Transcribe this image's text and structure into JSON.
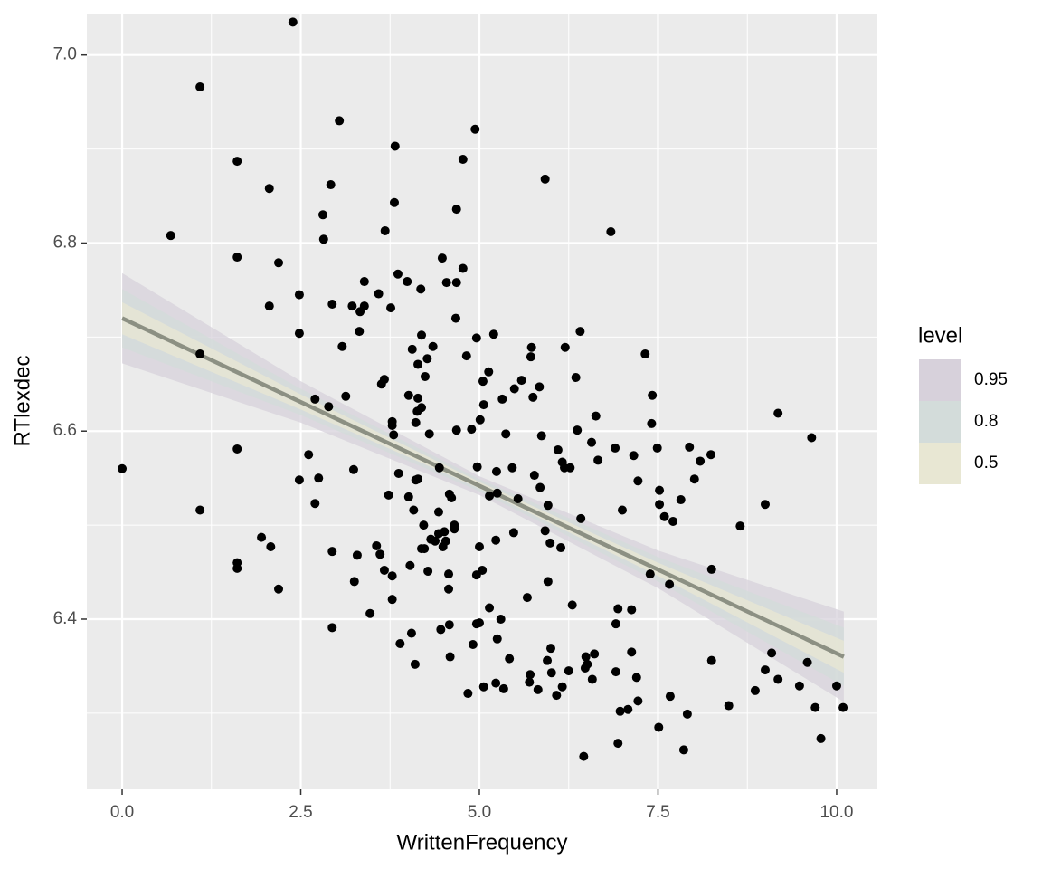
{
  "chart_data": {
    "type": "scatter",
    "x_label": "WrittenFrequency",
    "y_label": "RTlexdec",
    "xlim": [
      -0.494,
      10.57
    ],
    "ylim": [
      6.219,
      7.044
    ],
    "xticks": [
      {
        "value": 0,
        "label": "0.0"
      },
      2.5,
      {
        "value": 5,
        "label": "5.0"
      },
      7.5,
      {
        "value": 10,
        "label": "10.0"
      }
    ],
    "yticks": [
      6.4,
      6.6,
      6.8,
      {
        "value": 7,
        "label": "7.0"
      }
    ],
    "x_minor_ticks": [
      1.25,
      3.75,
      6.25,
      8.75
    ],
    "y_minor_ticks": [
      6.3,
      6.5,
      6.7,
      6.9
    ],
    "grid": true,
    "point_color": "#000000",
    "legend_title": "level",
    "legend_position": "right",
    "ribbons": [
      {
        "name": "0.95",
        "color": "#d7d1db",
        "x": [
          0,
          2.5,
          5,
          7.5,
          10.1
        ],
        "lower": [
          6.672,
          6.609,
          6.532,
          6.433,
          6.312
        ],
        "upper": [
          6.768,
          6.653,
          6.552,
          6.473,
          6.408
        ]
      },
      {
        "name": "0.8",
        "color": "#d3dcda",
        "x": [
          0,
          2.5,
          5,
          7.5,
          10.1
        ],
        "lower": [
          6.689,
          6.617,
          6.536,
          6.44,
          6.329
        ],
        "upper": [
          6.751,
          6.645,
          6.549,
          6.466,
          6.391
        ]
      },
      {
        "name": "0.5",
        "color": "#e8e7d3",
        "x": [
          0,
          2.5,
          5,
          7.5,
          10.1
        ],
        "lower": [
          6.703,
          6.623,
          6.539,
          6.446,
          6.343
        ],
        "upper": [
          6.737,
          6.639,
          6.546,
          6.46,
          6.377
        ]
      }
    ],
    "fit_line": {
      "color": "#8c9083",
      "x": [
        0,
        10.1
      ],
      "y": [
        6.72,
        6.36
      ]
    },
    "x": [
      0,
      0.68,
      1.09,
      1.09,
      1.09,
      1.61,
      1.61,
      1.61,
      1.61,
      1.61,
      1.95,
      2.06,
      2.06,
      2.08,
      2.19,
      2.19,
      2.39,
      2.48,
      2.48,
      2.48,
      2.61,
      2.7,
      2.7,
      2.75,
      2.81,
      2.82,
      2.89,
      2.92,
      2.94,
      2.94,
      2.94,
      3.04,
      3.08,
      3.13,
      3.22,
      3.24,
      3.25,
      3.29,
      3.32,
      3.33,
      3.39,
      3.39,
      3.47,
      3.56,
      3.59,
      3.61,
      3.63,
      3.67,
      3.67,
      3.68,
      3.73,
      3.76,
      3.78,
      3.78,
      3.78,
      3.78,
      3.8,
      3.81,
      3.82,
      3.86,
      3.87,
      3.89,
      3.99,
      4.01,
      4.01,
      4.03,
      4.05,
      4.06,
      4.08,
      4.1,
      4.11,
      4.11,
      4.13,
      4.14,
      4.14,
      4.14,
      4.18,
      4.19,
      4.19,
      4.19,
      4.22,
      4.23,
      4.24,
      4.27,
      4.28,
      4.3,
      4.32,
      4.35,
      4.38,
      4.43,
      4.43,
      4.44,
      4.46,
      4.48,
      4.49,
      4.51,
      4.53,
      4.54,
      4.57,
      4.57,
      4.58,
      4.58,
      4.59,
      4.61,
      4.68,
      4.65,
      4.65,
      4.67,
      4.68,
      4.68,
      4.77,
      4.77,
      4.82,
      4.84,
      4.89,
      4.91,
      4.94,
      4.96,
      4.96,
      4.96,
      4.97,
      5.0,
      5.0,
      5.01,
      5.04,
      5.05,
      5.06,
      5.06,
      5.13,
      5.14,
      5.14,
      5.2,
      5.23,
      5.23,
      5.24,
      5.25,
      5.25,
      5.3,
      5.32,
      5.34,
      5.37,
      5.42,
      5.46,
      5.48,
      5.49,
      5.54,
      5.59,
      5.67,
      5.7,
      5.71,
      5.72,
      5.73,
      5.75,
      5.77,
      5.82,
      5.84,
      5.85,
      5.87,
      5.92,
      5.92,
      5.95,
      5.96,
      5.96,
      5.99,
      6.0,
      6.01,
      6.08,
      6.1,
      6.14,
      6.16,
      6.16,
      6.19,
      6.2,
      6.27,
      6.25,
      6.3,
      6.35,
      6.37,
      6.41,
      6.42,
      6.46,
      6.48,
      6.49,
      6.51,
      6.57,
      6.58,
      6.61,
      6.63,
      6.66,
      6.84,
      6.9,
      6.91,
      6.91,
      6.94,
      6.94,
      6.97,
      7.0,
      7.08,
      7.13,
      7.13,
      7.16,
      7.2,
      7.22,
      7.22,
      7.32,
      7.39,
      7.41,
      7.42,
      7.49,
      7.51,
      7.52,
      7.52,
      7.59,
      7.66,
      7.67,
      7.71,
      7.82,
      7.86,
      7.91,
      7.94,
      8.01,
      8.09,
      8.25,
      8.25,
      8.24,
      8.49,
      8.65,
      8.86,
      9.0,
      9.0,
      9.09,
      9.18,
      9.18,
      9.48,
      9.59,
      9.65,
      9.7,
      9.78,
      10.0,
      10.09
    ],
    "y": [
      6.56,
      6.808,
      6.966,
      6.682,
      6.516,
      6.887,
      6.785,
      6.581,
      6.46,
      6.454,
      6.487,
      6.858,
      6.733,
      6.477,
      6.779,
      6.432,
      7.035,
      6.745,
      6.704,
      6.548,
      6.575,
      6.634,
      6.523,
      6.55,
      6.83,
      6.804,
      6.626,
      6.862,
      6.735,
      6.472,
      6.391,
      6.93,
      6.69,
      6.637,
      6.733,
      6.559,
      6.44,
      6.468,
      6.706,
      6.727,
      6.759,
      6.733,
      6.406,
      6.478,
      6.746,
      6.469,
      6.65,
      6.655,
      6.452,
      6.813,
      6.532,
      6.731,
      6.446,
      6.421,
      6.61,
      6.606,
      6.596,
      6.843,
      6.903,
      6.767,
      6.555,
      6.374,
      6.759,
      6.638,
      6.53,
      6.457,
      6.385,
      6.687,
      6.516,
      6.352,
      6.609,
      6.548,
      6.621,
      6.635,
      6.671,
      6.549,
      6.751,
      6.702,
      6.625,
      6.475,
      6.5,
      6.475,
      6.658,
      6.677,
      6.451,
      6.597,
      6.485,
      6.69,
      6.483,
      6.514,
      6.491,
      6.561,
      6.389,
      6.784,
      6.477,
      6.493,
      6.483,
      6.758,
      6.448,
      6.432,
      6.394,
      6.533,
      6.36,
      6.529,
      6.758,
      6.496,
      6.5,
      6.72,
      6.836,
      6.601,
      6.773,
      6.889,
      6.68,
      6.321,
      6.602,
      6.373,
      6.921,
      6.699,
      6.447,
      6.395,
      6.562,
      6.396,
      6.477,
      6.612,
      6.452,
      6.653,
      6.328,
      6.628,
      6.663,
      6.412,
      6.531,
      6.703,
      6.484,
      6.332,
      6.557,
      6.379,
      6.534,
      6.4,
      6.634,
      6.326,
      6.597,
      6.358,
      6.561,
      6.492,
      6.645,
      6.528,
      6.654,
      6.423,
      6.333,
      6.341,
      6.679,
      6.689,
      6.636,
      6.553,
      6.325,
      6.647,
      6.54,
      6.595,
      6.868,
      6.494,
      6.356,
      6.521,
      6.44,
      6.481,
      6.369,
      6.343,
      6.319,
      6.58,
      6.476,
      6.328,
      6.567,
      6.561,
      6.689,
      6.561,
      6.345,
      6.415,
      6.657,
      6.601,
      6.706,
      6.507,
      6.254,
      6.348,
      6.36,
      6.352,
      6.588,
      6.336,
      6.363,
      6.616,
      6.569,
      6.812,
      6.582,
      6.344,
      6.395,
      6.268,
      6.411,
      6.302,
      6.516,
      6.304,
      6.365,
      6.41,
      6.574,
      6.338,
      6.313,
      6.547,
      6.682,
      6.448,
      6.608,
      6.638,
      6.582,
      6.285,
      6.522,
      6.537,
      6.509,
      6.437,
      6.318,
      6.504,
      6.527,
      6.261,
      6.299,
      6.583,
      6.549,
      6.568,
      6.356,
      6.453,
      6.575,
      6.308,
      6.499,
      6.324,
      6.346,
      6.522,
      6.364,
      6.619,
      6.336,
      6.329,
      6.354,
      6.593,
      6.306,
      6.273,
      6.329,
      6.306
    ]
  }
}
